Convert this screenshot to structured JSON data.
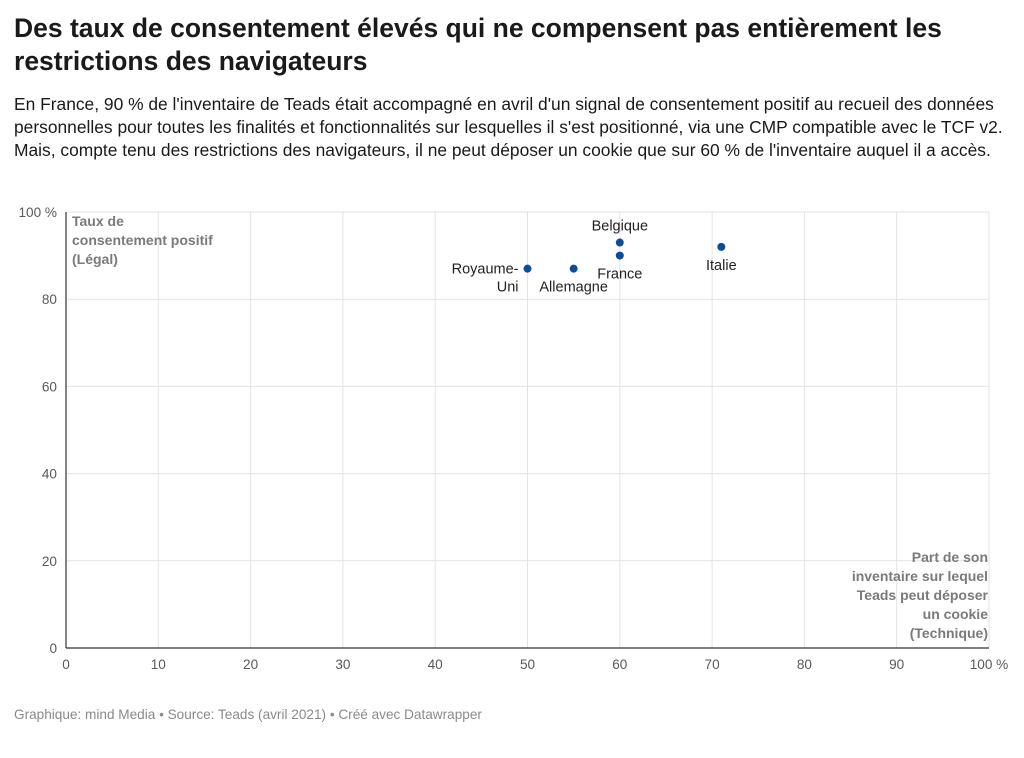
{
  "header": {
    "title": "Des taux de consentement élevés qui ne compensent pas entièrement les restrictions des navigateurs",
    "subtitle": "En France, 90 % de l'inventaire de Teads était accompagné en avril d'un signal de consentement positif au recueil des données personnelles pour toutes les finalités et fonctionnalités sur lesquelles il s'est positionné, via une CMP compatible avec le TCF v2. Mais, compte tenu des restrictions des navigateurs, il ne peut déposer un cookie que sur 60 % de l'inventaire auquel il a accès."
  },
  "footer": {
    "text": "Graphique: mind Media • Source: Teads (avril 2021) • Créé avec Datawrapper"
  },
  "chart_data": {
    "type": "scatter",
    "title": "Des taux de consentement élevés qui ne compensent pas entièrement les restrictions des navigateurs",
    "xlabel": "Part de son inventaire sur lequel Teads peut déposer un cookie (Technique)",
    "ylabel": "Taux de consentement positif (Légal)",
    "xlabel_lines": [
      "Part de son",
      "inventaire sur lequel",
      "Teads peut déposer",
      "un cookie",
      "(Technique)"
    ],
    "ylabel_lines": [
      "Taux de",
      "consentement positif",
      "(Légal)"
    ],
    "xlim": [
      0,
      100
    ],
    "ylim": [
      0,
      100
    ],
    "x_ticks": [
      "0",
      "10",
      "20",
      "30",
      "40",
      "50",
      "60",
      "70",
      "80",
      "90",
      "100 %"
    ],
    "y_ticks": [
      "0",
      "20",
      "40",
      "60",
      "80",
      "100 %"
    ],
    "grid": true,
    "point_color": "#0b4d99",
    "points": [
      {
        "label": "Royaume-Uni",
        "label_lines": [
          "Royaume-",
          "Uni"
        ],
        "x": 50,
        "y": 87,
        "label_pos": "left"
      },
      {
        "label": "Allemagne",
        "label_lines": [
          "Allemagne"
        ],
        "x": 55,
        "y": 87,
        "label_pos": "bottom"
      },
      {
        "label": "Belgique",
        "label_lines": [
          "Belgique"
        ],
        "x": 60,
        "y": 93,
        "label_pos": "top"
      },
      {
        "label": "France",
        "label_lines": [
          "France"
        ],
        "x": 60,
        "y": 90,
        "label_pos": "bottom"
      },
      {
        "label": "Italie",
        "label_lines": [
          "Italie"
        ],
        "x": 71,
        "y": 92,
        "label_pos": "bottom"
      }
    ]
  }
}
